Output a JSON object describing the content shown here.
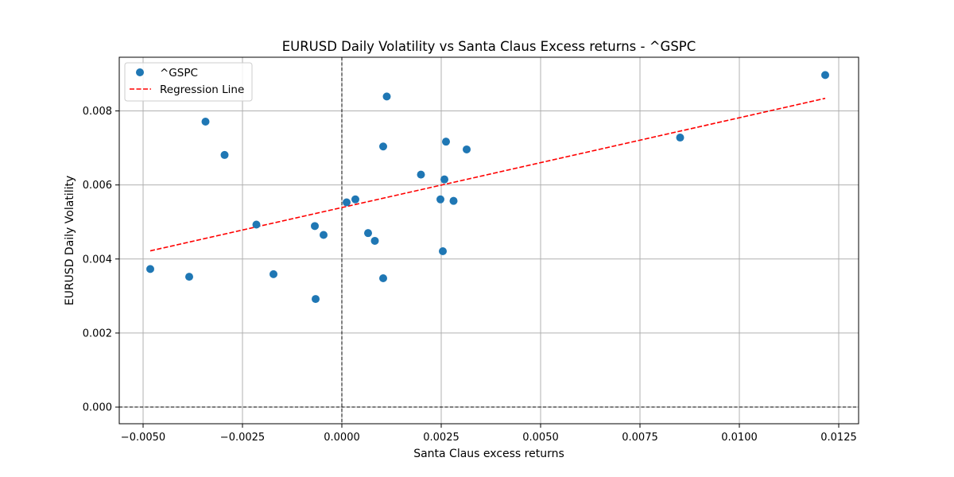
{
  "chart_data": {
    "type": "scatter",
    "title": "EURUSD Daily Volatility vs Santa Claus Excess returns - ^GSPC",
    "xlabel": "Santa Claus excess returns",
    "ylabel": "EURUSD Daily Volatility",
    "xlim": [
      -0.0056,
      0.013
    ],
    "ylim": [
      -0.00045,
      0.00945
    ],
    "xticks": [
      -0.005,
      -0.0025,
      0.0,
      0.0025,
      0.005,
      0.0075,
      0.01,
      0.0125
    ],
    "xtick_labels": [
      "−0.0050",
      "−0.0025",
      "0.0000",
      "0.0025",
      "0.0050",
      "0.0075",
      "0.0100",
      "0.0125"
    ],
    "yticks": [
      0.0,
      0.002,
      0.004,
      0.006,
      0.008
    ],
    "ytick_labels": [
      "0.000",
      "0.002",
      "0.004",
      "0.006",
      "0.008"
    ],
    "grid": true,
    "legend_position": "top-left",
    "reference_lines": {
      "x": 0.0,
      "y": 0.0
    },
    "series": [
      {
        "name": "^GSPC",
        "kind": "scatter",
        "color": "#1f77b4",
        "points": [
          [
            -0.00482,
            0.00373
          ],
          [
            -0.00384,
            0.00352
          ],
          [
            -0.00343,
            0.00771
          ],
          [
            -0.00295,
            0.00681
          ],
          [
            -0.00215,
            0.00493
          ],
          [
            -0.00172,
            0.00359
          ],
          [
            -0.00068,
            0.00489
          ],
          [
            -0.00066,
            0.00292
          ],
          [
            -0.00046,
            0.00465
          ],
          [
            0.00012,
            0.00553
          ],
          [
            0.00034,
            0.00561
          ],
          [
            0.00066,
            0.0047
          ],
          [
            0.00083,
            0.00449
          ],
          [
            0.00104,
            0.00348
          ],
          [
            0.00104,
            0.00704
          ],
          [
            0.00113,
            0.00839
          ],
          [
            0.00199,
            0.00628
          ],
          [
            0.00248,
            0.00561
          ],
          [
            0.00254,
            0.00421
          ],
          [
            0.00258,
            0.00615
          ],
          [
            0.00262,
            0.00717
          ],
          [
            0.00281,
            0.00557
          ],
          [
            0.00314,
            0.00696
          ],
          [
            0.00851,
            0.00728
          ],
          [
            0.01216,
            0.00897
          ]
        ]
      },
      {
        "name": "Regression Line",
        "kind": "line",
        "style": "dashed",
        "color": "#ff0000",
        "x": [
          -0.00482,
          0.01216
        ],
        "y": [
          0.00422,
          0.00834
        ]
      }
    ]
  }
}
